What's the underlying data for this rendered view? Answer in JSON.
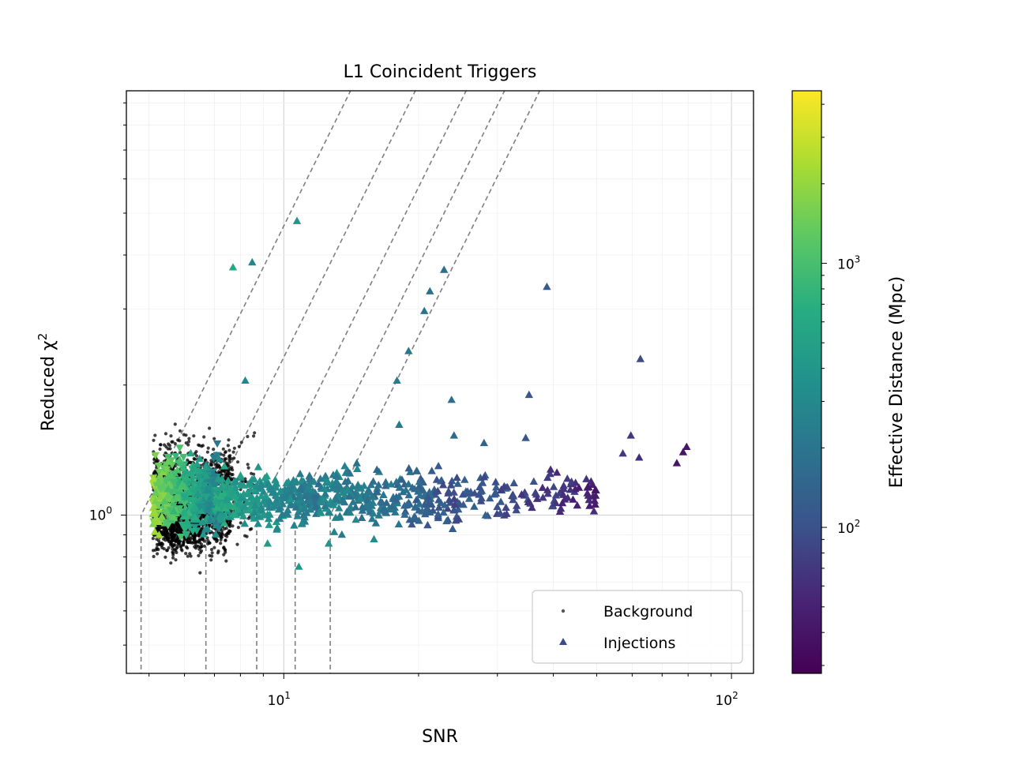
{
  "chart_data": {
    "type": "scatter",
    "title": "L1 Coincident Triggers",
    "xlabel": "SNR",
    "ylabel_text": "Reduced χ",
    "ylabel_exponent": "2",
    "xscale": "log",
    "yscale": "log",
    "xlim": [
      4.45,
      112
    ],
    "ylim": [
      0.43,
      9.6
    ],
    "x_major_ticks": [
      {
        "value": 10,
        "base": "10",
        "exp": "1"
      },
      {
        "value": 100,
        "base": "10",
        "exp": "2"
      }
    ],
    "y_major_ticks": [
      {
        "value": 1,
        "base": "10",
        "exp": "0"
      }
    ],
    "grid": true,
    "legend": {
      "placement": "lower-right",
      "entries": [
        {
          "label": "Background",
          "marker": "dot",
          "color": "#555555"
        },
        {
          "label": "Injections",
          "marker": "triangle",
          "color": "#3b4a8a"
        }
      ]
    },
    "colorbar": {
      "label": "Effective Distance (Mpc)",
      "scale": "log",
      "range": [
        28,
        4500
      ],
      "major_ticks": [
        {
          "value": 100,
          "base": "10",
          "exp": "2"
        },
        {
          "value": 1000,
          "base": "10",
          "exp": "3"
        }
      ],
      "colormap": "viridis"
    },
    "contours": [
      {
        "snr_threshold": 4.8
      },
      {
        "snr_threshold": 6.7
      },
      {
        "snr_threshold": 8.7
      },
      {
        "snr_threshold": 10.6
      },
      {
        "snr_threshold": 12.7
      }
    ],
    "series": [
      {
        "name": "Background",
        "marker": "dot",
        "color": "#000000",
        "clusters": [
          {
            "x_range": [
              5.1,
              7.6
            ],
            "y_range": [
              0.78,
              1.55
            ],
            "count": 1400
          },
          {
            "x_range": [
              5.2,
              6.6
            ],
            "y_range": [
              0.8,
              1.1
            ],
            "count": 500
          },
          {
            "x_range": [
              7.0,
              8.6
            ],
            "y_range": [
              0.82,
              1.58
            ],
            "count": 130
          }
        ],
        "points": [
          {
            "x": 6.5,
            "y": 0.735
          },
          {
            "x": 7.4,
            "y": 0.83
          },
          {
            "x": 7.4,
            "y": 0.82
          },
          {
            "x": 8.6,
            "y": 1.55
          },
          {
            "x": 8.3,
            "y": 1.52
          }
        ]
      },
      {
        "name": "Injections",
        "marker": "triangle",
        "colormap": "viridis",
        "color_by": "effective_distance_mpc",
        "clusters": [
          {
            "x_range": [
              5.1,
              7.2
            ],
            "y_range": [
              0.86,
              1.45
            ],
            "count": 420,
            "distance_mpc_range": [
              250,
              2000
            ]
          },
          {
            "x_range": [
              7.0,
              12.0
            ],
            "y_range": [
              0.92,
              1.3
            ],
            "count": 320,
            "distance_mpc_range": [
              200,
              600
            ]
          },
          {
            "x_range": [
              12.0,
              25.0
            ],
            "y_range": [
              0.9,
              1.35
            ],
            "count": 260,
            "distance_mpc_range": [
              100,
              300
            ]
          },
          {
            "x_range": [
              25.0,
              50.0
            ],
            "y_range": [
              0.97,
              1.3
            ],
            "count": 110,
            "distance_mpc_range": [
              50,
              130
            ]
          }
        ],
        "points": [
          {
            "x": 10.7,
            "y": 4.8,
            "d": 400
          },
          {
            "x": 7.7,
            "y": 3.75,
            "d": 600
          },
          {
            "x": 8.5,
            "y": 3.85,
            "d": 280
          },
          {
            "x": 8.2,
            "y": 2.05,
            "d": 280
          },
          {
            "x": 22.8,
            "y": 3.7,
            "d": 170
          },
          {
            "x": 21.2,
            "y": 3.3,
            "d": 180
          },
          {
            "x": 20.6,
            "y": 2.97,
            "d": 190
          },
          {
            "x": 19.0,
            "y": 2.4,
            "d": 200
          },
          {
            "x": 17.9,
            "y": 2.05,
            "d": 220
          },
          {
            "x": 38.7,
            "y": 3.38,
            "d": 120
          },
          {
            "x": 62.6,
            "y": 2.3,
            "d": 90
          },
          {
            "x": 23.7,
            "y": 1.85,
            "d": 170
          },
          {
            "x": 35.3,
            "y": 1.9,
            "d": 110
          },
          {
            "x": 18.1,
            "y": 1.62,
            "d": 210
          },
          {
            "x": 24.0,
            "y": 1.53,
            "d": 160
          },
          {
            "x": 34.7,
            "y": 1.51,
            "d": 110
          },
          {
            "x": 28.0,
            "y": 1.47,
            "d": 140
          },
          {
            "x": 59.6,
            "y": 1.53,
            "d": 70
          },
          {
            "x": 79.4,
            "y": 1.44,
            "d": 40
          },
          {
            "x": 78.0,
            "y": 1.4,
            "d": 40
          },
          {
            "x": 75.5,
            "y": 1.32,
            "d": 40
          },
          {
            "x": 62.2,
            "y": 1.36,
            "d": 60
          },
          {
            "x": 57.2,
            "y": 1.39,
            "d": 70
          },
          {
            "x": 10.8,
            "y": 0.76,
            "d": 400
          },
          {
            "x": 9.2,
            "y": 0.86,
            "d": 450
          },
          {
            "x": 12.6,
            "y": 0.86,
            "d": 380
          },
          {
            "x": 15.9,
            "y": 0.88,
            "d": 330
          }
        ]
      }
    ]
  }
}
